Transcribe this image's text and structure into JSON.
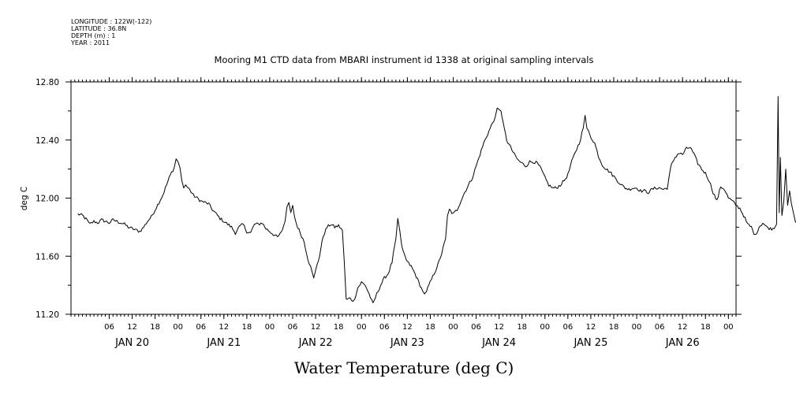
{
  "header": {
    "metadata_lines": [
      "LONGITUDE : 122W(-122)",
      "LATITUDE : 36.8N",
      "DEPTH (m) : 1",
      "YEAR : 2011"
    ]
  },
  "chart_data": {
    "type": "line",
    "title": "Mooring M1 CTD data from MBARI instrument id 1338 at original sampling intervals",
    "xlabel": "Water Temperature (deg C)",
    "ylabel": "deg C",
    "ylim": [
      11.2,
      12.8
    ],
    "y_ticks": [
      "11.20",
      "11.60",
      "12.00",
      "12.40",
      "12.80"
    ],
    "x_range_hours": [
      -4,
      2
    ],
    "x_hour_ticks": [
      {
        "hour": 6,
        "label": "06"
      },
      {
        "hour": 12,
        "label": "12"
      },
      {
        "hour": 18,
        "label": "18"
      },
      {
        "hour": 24,
        "label": "00"
      },
      {
        "hour": 30,
        "label": "06"
      },
      {
        "hour": 36,
        "label": "12"
      },
      {
        "hour": 42,
        "label": "18"
      },
      {
        "hour": 48,
        "label": "00"
      },
      {
        "hour": 54,
        "label": "06"
      },
      {
        "hour": 60,
        "label": "12"
      },
      {
        "hour": 66,
        "label": "18"
      },
      {
        "hour": 72,
        "label": "00"
      },
      {
        "hour": 78,
        "label": "06"
      },
      {
        "hour": 84,
        "label": "12"
      },
      {
        "hour": 90,
        "label": "18"
      },
      {
        "hour": 96,
        "label": "00"
      },
      {
        "hour": 102,
        "label": "06"
      },
      {
        "hour": 108,
        "label": "12"
      },
      {
        "hour": 114,
        "label": "18"
      },
      {
        "hour": 120,
        "label": "00"
      },
      {
        "hour": 126,
        "label": "06"
      },
      {
        "hour": 132,
        "label": "12"
      },
      {
        "hour": 138,
        "label": "18"
      },
      {
        "hour": 144,
        "label": "00"
      },
      {
        "hour": 150,
        "label": "06"
      },
      {
        "hour": 156,
        "label": "12"
      },
      {
        "hour": 162,
        "label": "18"
      },
      {
        "hour": 168,
        "label": "00"
      }
    ],
    "x_day_labels": [
      {
        "hour": 12,
        "label": "JAN 20"
      },
      {
        "hour": 36,
        "label": "JAN 21"
      },
      {
        "hour": 60,
        "label": "JAN 22"
      },
      {
        "hour": 84,
        "label": "JAN 23"
      },
      {
        "hour": 108,
        "label": "JAN 24"
      },
      {
        "hour": 132,
        "label": "JAN 25"
      },
      {
        "hour": 156,
        "label": "JAN 26"
      }
    ],
    "grid": false,
    "series": [
      {
        "color": "#000000",
        "points": [
          [
            -2.2,
            11.89
          ],
          [
            -1.0,
            11.88
          ],
          [
            0.5,
            11.84
          ],
          [
            1.0,
            11.82
          ],
          [
            2.0,
            11.84
          ],
          [
            3.0,
            11.83
          ],
          [
            4.0,
            11.85
          ],
          [
            5.0,
            11.84
          ],
          [
            6.0,
            11.83
          ],
          [
            7.0,
            11.85
          ],
          [
            8.0,
            11.84
          ],
          [
            9.0,
            11.83
          ],
          [
            10.0,
            11.82
          ],
          [
            11.0,
            11.8
          ],
          [
            12.0,
            11.79
          ],
          [
            13.0,
            11.78
          ],
          [
            14.0,
            11.77
          ],
          [
            15.0,
            11.8
          ],
          [
            16.0,
            11.84
          ],
          [
            17.0,
            11.87
          ],
          [
            18.0,
            11.92
          ],
          [
            19.0,
            11.97
          ],
          [
            20.0,
            12.02
          ],
          [
            21.0,
            12.09
          ],
          [
            22.0,
            12.16
          ],
          [
            23.0,
            12.21
          ],
          [
            23.5,
            12.27
          ],
          [
            24.0,
            12.25
          ],
          [
            24.5,
            12.21
          ],
          [
            25.0,
            12.12
          ],
          [
            25.5,
            12.07
          ],
          [
            26.0,
            12.09
          ],
          [
            27.0,
            12.06
          ],
          [
            28.0,
            12.02
          ],
          [
            29.0,
            12.0
          ],
          [
            30.0,
            11.98
          ],
          [
            31.0,
            11.97
          ],
          [
            32.0,
            11.96
          ],
          [
            33.0,
            11.92
          ],
          [
            34.0,
            11.89
          ],
          [
            35.0,
            11.86
          ],
          [
            36.0,
            11.84
          ],
          [
            37.0,
            11.82
          ],
          [
            38.0,
            11.8
          ],
          [
            39.0,
            11.76
          ],
          [
            40.0,
            11.8
          ],
          [
            41.0,
            11.82
          ],
          [
            42.0,
            11.77
          ],
          [
            43.0,
            11.76
          ],
          [
            44.0,
            11.82
          ],
          [
            45.0,
            11.82
          ],
          [
            46.0,
            11.83
          ],
          [
            47.0,
            11.79
          ],
          [
            48.0,
            11.77
          ],
          [
            49.0,
            11.75
          ],
          [
            50.0,
            11.73
          ],
          [
            51.0,
            11.76
          ],
          [
            52.0,
            11.84
          ],
          [
            52.5,
            11.94
          ],
          [
            53.0,
            11.97
          ],
          [
            53.5,
            11.9
          ],
          [
            54.0,
            11.95
          ],
          [
            54.5,
            11.87
          ],
          [
            55.0,
            11.82
          ],
          [
            56.0,
            11.76
          ],
          [
            57.0,
            11.7
          ],
          [
            58.0,
            11.58
          ],
          [
            59.0,
            11.5
          ],
          [
            59.5,
            11.45
          ],
          [
            60.0,
            11.5
          ],
          [
            61.0,
            11.6
          ],
          [
            62.0,
            11.74
          ],
          [
            63.0,
            11.8
          ],
          [
            64.0,
            11.82
          ],
          [
            65.0,
            11.8
          ],
          [
            66.0,
            11.81
          ],
          [
            67.0,
            11.78
          ],
          [
            67.5,
            11.56
          ],
          [
            68.0,
            11.3
          ],
          [
            69.0,
            11.31
          ],
          [
            70.0,
            11.29
          ],
          [
            71.0,
            11.38
          ],
          [
            72.0,
            11.42
          ],
          [
            73.0,
            11.4
          ],
          [
            74.0,
            11.34
          ],
          [
            75.0,
            11.27
          ],
          [
            76.0,
            11.34
          ],
          [
            77.0,
            11.4
          ],
          [
            78.0,
            11.45
          ],
          [
            79.0,
            11.48
          ],
          [
            80.0,
            11.56
          ],
          [
            81.0,
            11.72
          ],
          [
            81.5,
            11.86
          ],
          [
            82.0,
            11.78
          ],
          [
            82.5,
            11.68
          ],
          [
            83.0,
            11.62
          ],
          [
            84.0,
            11.56
          ],
          [
            85.0,
            11.53
          ],
          [
            86.0,
            11.48
          ],
          [
            87.0,
            11.42
          ],
          [
            88.0,
            11.36
          ],
          [
            88.5,
            11.34
          ],
          [
            89.0,
            11.36
          ],
          [
            90.0,
            11.42
          ],
          [
            91.0,
            11.48
          ],
          [
            92.0,
            11.54
          ],
          [
            93.0,
            11.62
          ],
          [
            94.0,
            11.72
          ],
          [
            94.5,
            11.88
          ],
          [
            95.0,
            11.92
          ],
          [
            96.0,
            11.89
          ],
          [
            97.0,
            11.92
          ],
          [
            98.0,
            11.98
          ],
          [
            99.0,
            12.04
          ],
          [
            100.0,
            12.09
          ],
          [
            101.0,
            12.14
          ],
          [
            102.0,
            12.22
          ],
          [
            103.0,
            12.3
          ],
          [
            104.0,
            12.38
          ],
          [
            105.0,
            12.44
          ],
          [
            106.0,
            12.5
          ],
          [
            107.0,
            12.56
          ],
          [
            107.5,
            12.62
          ],
          [
            108.0,
            12.61
          ],
          [
            108.5,
            12.6
          ],
          [
            109.0,
            12.52
          ],
          [
            110.0,
            12.4
          ],
          [
            111.0,
            12.35
          ],
          [
            112.0,
            12.3
          ],
          [
            113.0,
            12.26
          ],
          [
            114.0,
            12.24
          ],
          [
            115.0,
            12.22
          ],
          [
            116.0,
            12.25
          ],
          [
            117.0,
            12.25
          ],
          [
            118.0,
            12.24
          ],
          [
            119.0,
            12.2
          ],
          [
            120.0,
            12.14
          ],
          [
            121.0,
            12.09
          ],
          [
            122.0,
            12.07
          ],
          [
            123.0,
            12.07
          ],
          [
            124.0,
            12.09
          ],
          [
            125.0,
            12.12
          ],
          [
            126.0,
            12.16
          ],
          [
            127.0,
            12.25
          ],
          [
            128.0,
            12.32
          ],
          [
            129.0,
            12.38
          ],
          [
            130.0,
            12.48
          ],
          [
            130.5,
            12.57
          ],
          [
            131.0,
            12.48
          ],
          [
            132.0,
            12.42
          ],
          [
            133.0,
            12.38
          ],
          [
            134.0,
            12.29
          ],
          [
            135.0,
            12.23
          ],
          [
            136.0,
            12.2
          ],
          [
            137.0,
            12.18
          ],
          [
            138.0,
            12.15
          ],
          [
            139.0,
            12.12
          ],
          [
            140.0,
            12.09
          ],
          [
            141.0,
            12.07
          ],
          [
            142.0,
            12.06
          ],
          [
            143.0,
            12.07
          ],
          [
            144.0,
            12.07
          ],
          [
            145.0,
            12.05
          ],
          [
            146.0,
            12.05
          ],
          [
            147.0,
            12.04
          ],
          [
            148.0,
            12.06
          ],
          [
            149.0,
            12.07
          ],
          [
            150.0,
            12.07
          ],
          [
            151.0,
            12.06
          ],
          [
            152.0,
            12.07
          ],
          [
            153.0,
            12.22
          ],
          [
            154.0,
            12.28
          ],
          [
            155.0,
            12.31
          ],
          [
            156.0,
            12.3
          ],
          [
            157.0,
            12.34
          ],
          [
            158.0,
            12.35
          ],
          [
            159.0,
            12.3
          ],
          [
            160.0,
            12.24
          ],
          [
            161.0,
            12.2
          ],
          [
            162.0,
            12.17
          ],
          [
            163.0,
            12.12
          ],
          [
            164.0,
            12.04
          ],
          [
            165.0,
            11.98
          ],
          [
            166.0,
            12.08
          ],
          [
            167.0,
            12.06
          ],
          [
            168.0,
            12.0
          ],
          [
            169.0,
            11.98
          ],
          [
            170.0,
            11.95
          ],
          [
            171.0,
            11.93
          ],
          [
            172.0,
            11.88
          ],
          [
            173.0,
            11.82
          ],
          [
            174.0,
            11.8
          ],
          [
            175.0,
            11.74
          ],
          [
            176.0,
            11.8
          ],
          [
            177.0,
            11.83
          ],
          [
            178.0,
            11.8
          ],
          [
            179.0,
            11.79
          ],
          [
            180.0,
            11.79
          ],
          [
            180.6,
            11.82
          ],
          [
            181.0,
            12.7
          ],
          [
            181.3,
            11.9
          ],
          [
            181.6,
            12.28
          ],
          [
            182.0,
            11.88
          ],
          [
            182.5,
            11.98
          ],
          [
            183.0,
            12.2
          ],
          [
            183.5,
            11.95
          ],
          [
            184.0,
            12.05
          ],
          [
            184.5,
            11.96
          ],
          [
            185.0,
            11.9
          ],
          [
            185.5,
            11.84
          ],
          [
            186.0,
            11.82
          ]
        ]
      }
    ]
  }
}
